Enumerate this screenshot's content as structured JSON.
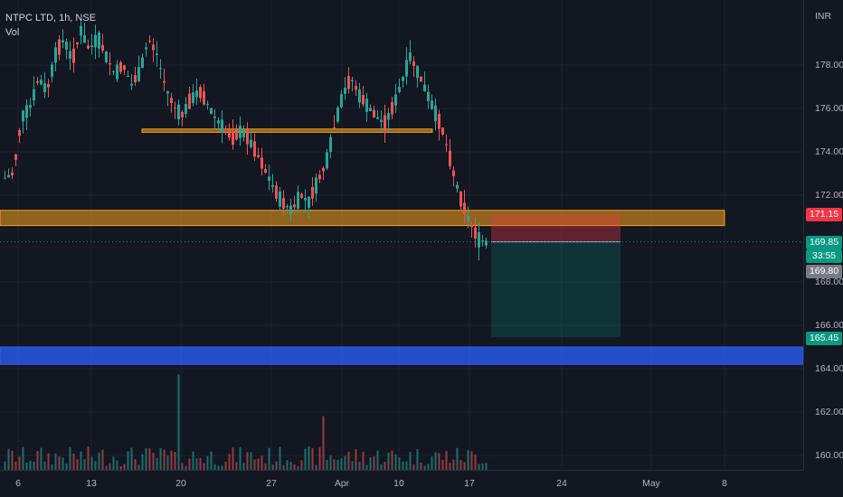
{
  "legend": {
    "symbol": "NTPC LTD, 1h, NSE",
    "volume_label": "Vol"
  },
  "currency": "INR",
  "price_ticks": [
    "178.00",
    "176.00",
    "174.00",
    "172.00",
    "168.00",
    "166.00",
    "164.00",
    "162.00",
    "160.00"
  ],
  "time_ticks": [
    "6",
    "13",
    "20",
    "27",
    "Apr",
    "10",
    "17",
    "24",
    "May",
    "8"
  ],
  "price_labels": {
    "stop": "171.15",
    "last_price": "169.85",
    "countdown": "33:55",
    "prev_close": "169.80",
    "target": "165.45"
  },
  "colors": {
    "up": "#26a69a",
    "down": "#ef5350",
    "stop": "#f23645",
    "target": "#089981",
    "zone_orange": "#f7a21b",
    "zone_blue": "#2962ff",
    "prev_close_bg": "#787b86"
  },
  "zones": [
    {
      "type": "line-zone",
      "from": 174.9,
      "to": 175.05,
      "start": "Mar 17",
      "end": "Apr 13",
      "color": "orange"
    },
    {
      "type": "zone",
      "from": 170.6,
      "to": 171.3,
      "start": "Mar 1",
      "end": "May 8",
      "color": "orange"
    },
    {
      "type": "zone",
      "from": 164.2,
      "to": 165.0,
      "start": "Mar 1",
      "end": "May 12",
      "color": "blue"
    }
  ],
  "position": {
    "side": "short",
    "entry": 169.85,
    "stop": 171.15,
    "target": 165.45,
    "start": "Apr 19",
    "end": "Apr 28"
  },
  "chart_data": {
    "type": "candlestick",
    "ylim": [
      159.5,
      180.2
    ],
    "candles_approx": [
      [
        171.0,
        172.8,
        174.6,
        170.7
      ],
      [
        172.8,
        173.0,
        174.2,
        172.4
      ],
      [
        173.0,
        175.6,
        176.2,
        172.6
      ],
      [
        175.6,
        176.1,
        177.4,
        175.1
      ],
      [
        176.1,
        177.4,
        178.3,
        175.7
      ],
      [
        177.4,
        176.8,
        178.1,
        176.3
      ],
      [
        176.8,
        178.5,
        179.4,
        176.4
      ],
      [
        178.5,
        179.2,
        179.8,
        177.9
      ],
      [
        179.2,
        178.2,
        179.8,
        177.6
      ],
      [
        178.2,
        179.6,
        180.4,
        177.9
      ],
      [
        179.6,
        178.7,
        180.2,
        178.1
      ],
      [
        178.7,
        179.3,
        180.1,
        178.4
      ],
      [
        179.3,
        178.4,
        179.7,
        177.7
      ],
      [
        178.4,
        177.6,
        178.9,
        177.1
      ],
      [
        177.6,
        178.0,
        178.7,
        177.2
      ],
      [
        178.0,
        177.1,
        178.5,
        176.7
      ],
      [
        177.1,
        177.7,
        178.3,
        176.9
      ],
      [
        177.7,
        179.2,
        179.6,
        177.4
      ],
      [
        179.2,
        178.5,
        180.3,
        178.0
      ],
      [
        178.5,
        177.0,
        178.8,
        176.4
      ],
      [
        177.0,
        176.1,
        177.4,
        175.6
      ],
      [
        176.1,
        175.7,
        176.6,
        175.2
      ],
      [
        175.7,
        176.4,
        176.8,
        175.3
      ],
      [
        176.4,
        176.8,
        177.3,
        176.0
      ],
      [
        176.8,
        176.2,
        177.1,
        175.6
      ],
      [
        176.2,
        175.5,
        176.5,
        175.0
      ],
      [
        175.5,
        175.1,
        175.9,
        174.8
      ],
      [
        175.1,
        174.6,
        175.4,
        174.2
      ],
      [
        174.6,
        175.0,
        175.5,
        174.3
      ],
      [
        175.0,
        174.5,
        175.3,
        174.0
      ],
      [
        174.5,
        173.8,
        174.8,
        173.3
      ],
      [
        173.8,
        173.0,
        174.1,
        172.5
      ],
      [
        173.0,
        172.2,
        173.4,
        171.8
      ],
      [
        172.2,
        171.6,
        172.6,
        171.2
      ],
      [
        171.6,
        171.3,
        172.1,
        170.8
      ],
      [
        171.3,
        172.0,
        172.4,
        171.0
      ],
      [
        172.0,
        171.7,
        172.5,
        171.2
      ],
      [
        171.7,
        172.6,
        173.1,
        171.5
      ],
      [
        172.6,
        173.4,
        173.8,
        172.3
      ],
      [
        173.4,
        175.1,
        175.5,
        173.0
      ],
      [
        175.1,
        176.6,
        177.3,
        174.8
      ],
      [
        176.6,
        177.4,
        178.1,
        176.2
      ],
      [
        177.4,
        176.6,
        178.0,
        176.1
      ],
      [
        176.6,
        176.1,
        176.9,
        175.5
      ],
      [
        176.1,
        175.6,
        176.5,
        175.1
      ],
      [
        175.6,
        175.3,
        176.0,
        174.9
      ],
      [
        175.3,
        176.1,
        176.8,
        175.0
      ],
      [
        176.1,
        177.2,
        177.6,
        175.8
      ],
      [
        177.2,
        178.4,
        179.5,
        177.0
      ],
      [
        178.4,
        177.6,
        178.9,
        177.1
      ],
      [
        177.6,
        176.7,
        177.9,
        176.2
      ],
      [
        176.7,
        175.8,
        177.0,
        175.3
      ],
      [
        175.8,
        174.8,
        176.2,
        174.2
      ],
      [
        174.8,
        173.2,
        175.1,
        172.8
      ],
      [
        173.2,
        171.8,
        173.5,
        171.2
      ],
      [
        171.8,
        170.8,
        172.2,
        170.2
      ],
      [
        170.8,
        170.0,
        171.1,
        169.6
      ],
      [
        170.0,
        169.8,
        170.3,
        169.5
      ]
    ]
  }
}
